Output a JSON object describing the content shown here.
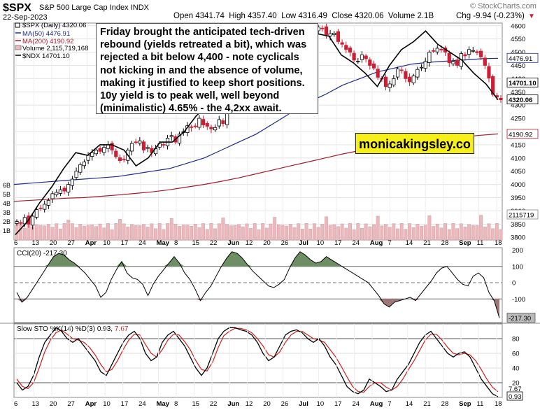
{
  "header": {
    "symbol": "$SPX",
    "name": "S&P 500 Large Cap Index",
    "exchange": "INDX",
    "date": "22-Sep-2023",
    "ohlc": "Open 4341.74  High 4357.40  Low 4316.49  Close 4320.06  Volume 2.1B",
    "change": "Chg -9.94 (-0.23%)",
    "change_marker": "▼",
    "source": "© StockCharts.com"
  },
  "legend": {
    "price": "$SPX (Daily) 4320.06",
    "ma50": "MA(50) 4476.91",
    "ma200": "MA(200) 4190.92",
    "volume": "Volume 2,115,719,168",
    "ndx": "$NDX 14701.10"
  },
  "annotation": "Friday brought the anticipated tech-driven rebound (yields retreated a bit), which was rejected a bit below 4,400 - note cyclicals not kicking in and the absence of volume, making it justified to keep short positions. 10y yield is to peak well, well beyond (minimalistic) 4.65% - the 4,2xx await.",
  "brand": "monicakingsley.co",
  "colors": {
    "up": "#ffffff",
    "down": "#cc1f33",
    "ma50": "#1f2a8a",
    "ma200": "#a01c28",
    "ndx": "#000000",
    "volume_fill": "#eeb7bb",
    "cci_pos": "#6e8f63",
    "cci_neg": "#a07777",
    "stoch_k": "#000000",
    "stoch_d": "#cc1f1f"
  },
  "chart_data": [
    {
      "type": "candlestick",
      "panel": "price",
      "title": "$SPX S&P 500 Large Cap Index INDX",
      "x_tick_labels": [
        "6",
        "13",
        "20",
        "27",
        "Apr",
        "10",
        "17",
        "24",
        "May",
        "8",
        "15",
        "22",
        "Jun",
        "12",
        "20",
        "26",
        "Jul",
        "10",
        "17",
        "24",
        "Aug",
        "7",
        "14",
        "21",
        "28",
        "Sep",
        "11",
        "18"
      ],
      "y_ticks": [
        3800,
        3850,
        3900,
        3950,
        4000,
        4050,
        4100,
        4150,
        4200,
        4250,
        4300,
        4350,
        4400,
        4450,
        4500,
        4550,
        4600
      ],
      "ylim": [
        3790,
        4610
      ],
      "volume_ticks": [
        "1B",
        "2B",
        "3B",
        "4B",
        "5B",
        "6B"
      ],
      "value_labels": {
        "ma50": "4476.91",
        "ndx": "14701.10",
        "close": "4320.06",
        "ma200": "4190.92",
        "volume": "2115719"
      },
      "note": "Candles and NDX line are hidden behind the annotation box between mid-April and late June.",
      "series": [
        {
          "name": "$SPX (Daily)",
          "close": [
            3860,
            3855,
            3875,
            3850,
            3880,
            3905,
            3910,
            3925,
            3940,
            3965,
            3970,
            3980,
            3975,
            4000,
            4020,
            4050,
            4075,
            4085,
            4110,
            4120,
            4130,
            4125,
            4140,
            4150,
            4130,
            4105,
            4090,
            4095,
            4130,
            4155,
            4160,
            4165,
            4130,
            4140,
            4120,
            4135,
            4155,
            4150,
            4175,
            4185,
            4160,
            4190,
            4200,
            4222,
            4215,
            4220,
            4250,
            4225,
            4220,
            4210,
            4215,
            4245,
            4230,
            4280,
            4320,
            4330,
            4385,
            4403,
            4454,
            4410,
            4395,
            4390,
            4395,
            4420,
            4440,
            4445,
            4455,
            4460,
            4490,
            4500,
            4510,
            4520,
            4560,
            4565,
            4575,
            4585,
            4595,
            4590,
            4565,
            4570,
            4572,
            4540,
            4530,
            4510,
            4500,
            4470,
            4466,
            4490,
            4475,
            4450,
            4440,
            4405,
            4400,
            4370,
            4380,
            4400,
            4437,
            4431,
            4400,
            4388,
            4410,
            4435,
            4443,
            4465,
            4500,
            4505,
            4515,
            4510,
            4500,
            4460,
            4465,
            4450,
            4495,
            4486,
            4510,
            4506,
            4498,
            4482,
            4450,
            4402,
            4340,
            4330,
            4320
          ]
        },
        {
          "name": "MA(50)",
          "values": [
            4000,
            4005,
            4010,
            4015,
            4020,
            4025,
            4030,
            4040,
            4050,
            4060,
            4080,
            4100,
            4130,
            4160,
            4190,
            4230,
            4270,
            4310,
            4340,
            4375,
            4400,
            4425,
            4440,
            4455,
            4462,
            4466,
            4470,
            4475,
            4477
          ]
        },
        {
          "name": "MA(200)",
          "values": [
            3936,
            3940,
            3944,
            3948,
            3950,
            3955,
            3960,
            3966,
            3972,
            3980,
            3990,
            4000,
            4012,
            4025,
            4040,
            4055,
            4070,
            4085,
            4100,
            4115,
            4128,
            4140,
            4150,
            4160,
            4167,
            4173,
            4180,
            4186,
            4191
          ]
        },
        {
          "name": "$NDX",
          "values": [
            3810,
            3860,
            3930,
            3990,
            4060,
            4120,
            4110,
            4150,
            4150,
            4130,
            4070,
            4100,
            4160,
            4160,
            4200,
            4260,
            4300,
            4380,
            4440,
            4500,
            4560,
            4590,
            4570,
            4550,
            4540,
            4570,
            4560,
            4490,
            4460,
            4420,
            4370,
            4450,
            4510,
            4540,
            4580,
            4530,
            4500,
            4470,
            4420,
            4380,
            4320
          ]
        }
      ]
    },
    {
      "type": "line",
      "panel": "cci",
      "title": "CCI(20) -217.30",
      "y_ticks": [
        -200,
        -100,
        0,
        100,
        200
      ],
      "ylim": [
        -245,
        215
      ],
      "reference_lines": [
        -100,
        0,
        100
      ],
      "value_label": "-217.30",
      "series": [
        {
          "name": "CCI(20)",
          "values": [
            -60,
            -120,
            -90,
            -40,
            10,
            60,
            110,
            160,
            180,
            170,
            140,
            120,
            90,
            60,
            20,
            -20,
            -90,
            -60,
            20,
            80,
            130,
            60,
            30,
            20,
            -10,
            -80,
            -10,
            40,
            80,
            120,
            160,
            120,
            60,
            20,
            -40,
            -110,
            -60,
            -20,
            40,
            100,
            150,
            190,
            180,
            150,
            110,
            70,
            40,
            10,
            -20,
            -30,
            -10,
            20,
            90,
            150,
            190,
            170,
            140,
            120,
            130,
            160,
            140,
            120,
            100,
            80,
            60,
            40,
            20,
            0,
            -40,
            -80,
            -130,
            -150,
            -120,
            -110,
            -100,
            -90,
            -110,
            -70,
            -30,
            10,
            60,
            90,
            100,
            60,
            20,
            -10,
            -20,
            40,
            60,
            30,
            -60,
            -110,
            -217
          ]
        }
      ]
    },
    {
      "type": "line",
      "panel": "stochastic",
      "title": "Slow STO %K(14) %D(3) 0.93, 7.67",
      "x_tick_labels": [
        "6",
        "13",
        "20",
        "27",
        "Apr",
        "10",
        "17",
        "24",
        "May",
        "8",
        "15",
        "22",
        "Jun",
        "12",
        "20",
        "26",
        "Jul",
        "10",
        "17",
        "24",
        "Aug",
        "7",
        "14",
        "21",
        "28",
        "Sep",
        "11",
        "18"
      ],
      "y_ticks": [
        20,
        40,
        60,
        80
      ],
      "ylim": [
        0,
        100
      ],
      "reference_lines": [
        20,
        80
      ],
      "value_labels": [
        "7.67",
        "0.93"
      ],
      "series": [
        {
          "name": "%K(14)",
          "values": [
            20,
            10,
            15,
            30,
            55,
            75,
            85,
            95,
            90,
            80,
            75,
            80,
            70,
            60,
            50,
            35,
            30,
            45,
            60,
            75,
            85,
            90,
            80,
            60,
            50,
            55,
            75,
            85,
            90,
            80,
            70,
            55,
            40,
            30,
            40,
            60,
            80,
            90,
            95,
            95,
            92,
            90,
            85,
            75,
            60,
            50,
            55,
            70,
            85,
            90,
            92,
            88,
            80,
            75,
            80,
            70,
            55,
            45,
            30,
            15,
            8,
            5,
            10,
            25,
            20,
            15,
            8,
            10,
            25,
            35,
            45,
            60,
            75,
            85,
            90,
            80,
            70,
            60,
            55,
            60,
            62,
            55,
            40,
            25,
            15,
            5,
            1
          ]
        },
        {
          "name": "%D(3)",
          "values": [
            25,
            15,
            12,
            20,
            40,
            62,
            78,
            88,
            92,
            86,
            80,
            78,
            75,
            68,
            58,
            45,
            35,
            38,
            50,
            65,
            78,
            86,
            85,
            72,
            60,
            55,
            65,
            78,
            86,
            85,
            76,
            65,
            50,
            38,
            36,
            48,
            68,
            84,
            90,
            94,
            94,
            92,
            88,
            80,
            70,
            58,
            55,
            62,
            75,
            85,
            90,
            90,
            85,
            80,
            78,
            75,
            65,
            55,
            42,
            28,
            15,
            8,
            7,
            15,
            20,
            20,
            14,
            10,
            15,
            25,
            38,
            50,
            64,
            78,
            86,
            86,
            78,
            68,
            60,
            58,
            60,
            58,
            50,
            38,
            25,
            14,
            7.67
          ]
        }
      ]
    }
  ]
}
